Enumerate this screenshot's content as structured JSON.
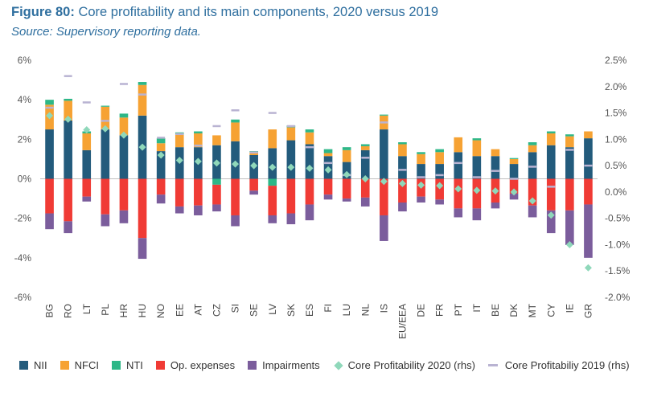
{
  "figure": {
    "label": "Figure 80:",
    "title": "Core profitability and its main components, 2020 versus 2019",
    "source": "Source: Supervisory reporting data."
  },
  "chart_data": {
    "type": "bar",
    "stacked": true,
    "categories": [
      "BG",
      "RO",
      "LT",
      "PL",
      "HR",
      "HU",
      "NO",
      "EE",
      "AT",
      "CZ",
      "SI",
      "SE",
      "LV",
      "SK",
      "ES",
      "FI",
      "LU",
      "NL",
      "IS",
      "EU/EEA",
      "DE",
      "FR",
      "PT",
      "IT",
      "BE",
      "DK",
      "MT",
      "CY",
      "IE",
      "GR"
    ],
    "y_left": {
      "min": -6,
      "max": 6,
      "step": 2,
      "ticks": [
        "6%",
        "4%",
        "2%",
        "0%",
        "-2%",
        "-4%",
        "-6%"
      ]
    },
    "y_right": {
      "min": -2.0,
      "max": 2.5,
      "step": 0.5,
      "ticks": [
        "2.5%",
        "2.0%",
        "1.5%",
        "1.0%",
        "0.5%",
        "0.0%",
        "-0.5%",
        "-1.0%",
        "-1.5%",
        "-2.0%"
      ]
    },
    "series": [
      {
        "name": "NII",
        "color": "#235b7c",
        "axis": "left",
        "values": [
          2.5,
          2.95,
          1.45,
          2.5,
          2.2,
          3.2,
          1.4,
          1.6,
          1.6,
          1.7,
          1.9,
          1.2,
          1.55,
          1.95,
          1.75,
          1.15,
          0.85,
          1.45,
          2.5,
          1.15,
          0.75,
          0.75,
          1.35,
          1.15,
          1.15,
          0.75,
          1.35,
          1.7,
          1.6,
          2.05
        ]
      },
      {
        "name": "NFCI",
        "color": "#f6a233",
        "axis": "left",
        "values": [
          1.25,
          1.0,
          0.85,
          1.15,
          0.9,
          1.55,
          0.4,
          0.65,
          0.7,
          0.5,
          0.95,
          0.15,
          0.95,
          0.65,
          0.6,
          0.15,
          0.6,
          0.2,
          0.7,
          0.6,
          0.5,
          0.6,
          0.75,
          0.8,
          0.35,
          0.25,
          0.35,
          0.6,
          0.55,
          0.35
        ]
      },
      {
        "name": "NTI",
        "color": "#2db787",
        "axis": "left",
        "values": [
          0.25,
          0.1,
          0.1,
          0.05,
          0.2,
          0.15,
          0.25,
          0.1,
          0.1,
          -0.3,
          0.15,
          0.05,
          -0.35,
          0.1,
          0.15,
          0.2,
          0.15,
          0.1,
          0.05,
          0.1,
          0.1,
          0.15,
          0.0,
          0.1,
          0.0,
          0.05,
          0.15,
          0.1,
          0.1,
          0.0
        ]
      },
      {
        "name": "Op. expenses",
        "color": "#f03b35",
        "axis": "left",
        "values": [
          -1.75,
          -2.15,
          -0.9,
          -1.8,
          -1.6,
          -3.0,
          -0.8,
          -1.4,
          -1.35,
          -1.0,
          -1.85,
          -0.6,
          -1.5,
          -1.75,
          -1.3,
          -0.8,
          -1.0,
          -0.95,
          -1.85,
          -1.2,
          -0.9,
          -1.05,
          -1.5,
          -1.5,
          -1.2,
          -0.75,
          -1.35,
          -1.6,
          -1.6,
          -1.3
        ]
      },
      {
        "name": "Impairments",
        "color": "#7b5d9c",
        "axis": "left",
        "values": [
          -0.8,
          -0.6,
          -0.25,
          -0.6,
          -0.65,
          -1.05,
          -0.45,
          -0.35,
          -0.5,
          -0.35,
          -0.55,
          -0.2,
          -0.4,
          -0.55,
          -0.8,
          -0.25,
          -0.15,
          -0.45,
          -1.3,
          -0.45,
          -0.3,
          -0.25,
          -0.45,
          -0.6,
          -0.3,
          -0.3,
          -0.6,
          -1.15,
          -1.75,
          -2.7
        ]
      },
      {
        "name": "Core Profitability 2020 (rhs)",
        "color": "#8fd8ba",
        "axis": "right",
        "marker": "diamond",
        "values": [
          1.45,
          1.38,
          1.18,
          1.2,
          1.08,
          0.85,
          0.7,
          0.6,
          0.58,
          0.55,
          0.53,
          0.5,
          0.47,
          0.47,
          0.45,
          0.42,
          0.33,
          0.25,
          0.2,
          0.16,
          0.13,
          0.12,
          0.06,
          0.03,
          0.02,
          0.0,
          -0.17,
          -0.44,
          -1.0,
          -1.44
        ]
      },
      {
        "name": "Core Profitabiliy 2019 (rhs)",
        "color": "#b9b3d2",
        "axis": "right",
        "marker": "dash",
        "values": [
          1.6,
          2.2,
          1.7,
          1.35,
          2.05,
          1.85,
          1.03,
          1.1,
          0.88,
          1.25,
          1.55,
          0.75,
          1.5,
          1.25,
          0.85,
          0.55,
          0.32,
          0.65,
          1.32,
          0.42,
          0.28,
          0.32,
          0.55,
          0.28,
          0.4,
          0.25,
          0.48,
          0.1,
          0.8,
          0.5
        ]
      }
    ]
  }
}
